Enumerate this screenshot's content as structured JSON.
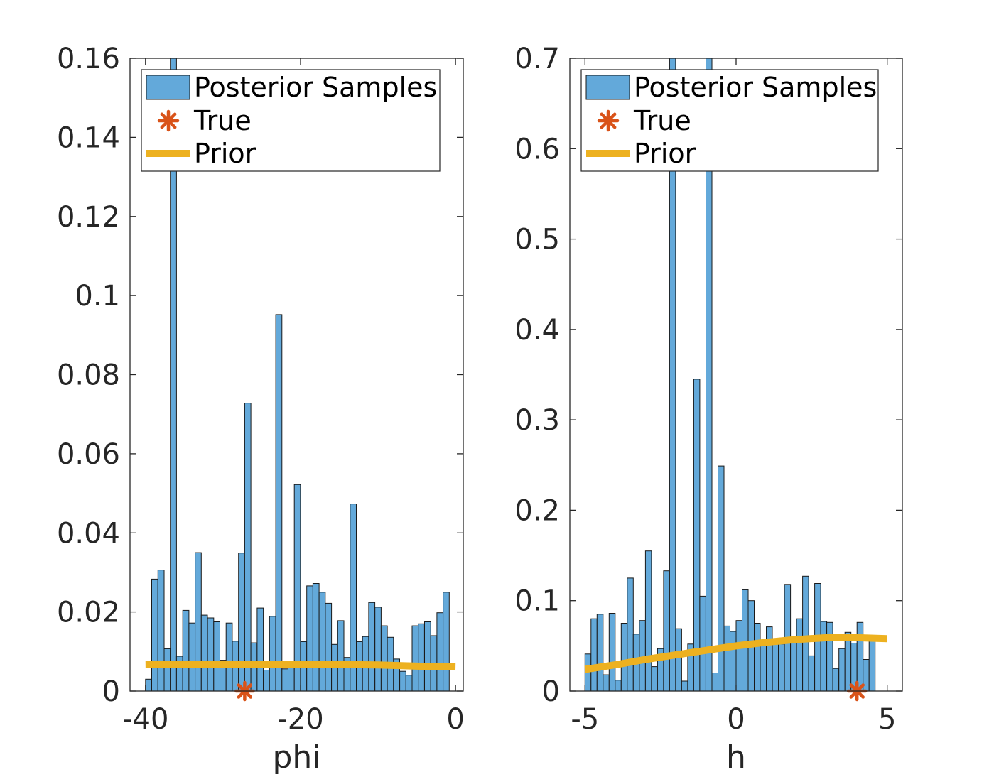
{
  "figure": {
    "colors": {
      "bars": "#63a9da",
      "bar_edge": "#1a1a1a",
      "true_marker": "#d95319",
      "prior_line": "#edb120",
      "axis": "#262626"
    }
  },
  "chart_data": [
    {
      "type": "bar",
      "panel": "left",
      "xlabel": "phi",
      "ylabel": "",
      "xlim": [
        -42,
        1
      ],
      "ylim": [
        0,
        0.16
      ],
      "xticks": [
        -40,
        -20,
        0
      ],
      "xtick_labels": [
        "-40",
        "-20",
        "0"
      ],
      "yticks": [
        0,
        0.02,
        0.04,
        0.06,
        0.08,
        0.1,
        0.12,
        0.14,
        0.16
      ],
      "ytick_labels": [
        "0",
        "0.02",
        "0.04",
        "0.06",
        "0.08",
        "0.1",
        "0.12",
        "0.14",
        "0.16"
      ],
      "legend": {
        "placement": "top-right",
        "entries": [
          "Posterior Samples",
          "True",
          "Prior"
        ]
      },
      "histogram": {
        "name": "Posterior Samples",
        "bin_start": -40.0,
        "bin_width": 0.8,
        "values": [
          0.003,
          0.0283,
          0.0306,
          0.0107,
          0.1605,
          0.0088,
          0.0204,
          0.0172,
          0.035,
          0.0192,
          0.0185,
          0.0175,
          0.0078,
          0.0172,
          0.0126,
          0.0349,
          0.0728,
          0.0122,
          0.021,
          0.0053,
          0.0189,
          0.0952,
          0.0056,
          0.006,
          0.0522,
          0.0125,
          0.0266,
          0.0272,
          0.025,
          0.0222,
          0.0118,
          0.0178,
          0.0085,
          0.0473,
          0.0125,
          0.0138,
          0.0224,
          0.0212,
          0.0165,
          0.0136,
          0.0081,
          0.005,
          0.004,
          0.0165,
          0.017,
          0.0175,
          0.014,
          0.0198,
          0.025
        ]
      },
      "true_value": {
        "name": "True",
        "x": -27.2,
        "y": 0
      },
      "prior": {
        "name": "Prior",
        "x": [
          -40,
          -35,
          -30,
          -25,
          -20,
          -15,
          -10,
          -5,
          0
        ],
        "y": [
          0.0067,
          0.0068,
          0.0068,
          0.0068,
          0.0068,
          0.0067,
          0.0066,
          0.0063,
          0.0061
        ]
      }
    },
    {
      "type": "bar",
      "panel": "right",
      "xlabel": "h",
      "ylabel": "",
      "xlim": [
        -5.5,
        5.5
      ],
      "ylim": [
        0,
        0.7
      ],
      "xticks": [
        -5,
        0,
        5
      ],
      "xtick_labels": [
        "-5",
        "0",
        "5"
      ],
      "yticks": [
        0,
        0.1,
        0.2,
        0.3,
        0.4,
        0.5,
        0.6,
        0.7
      ],
      "ytick_labels": [
        "0",
        "0.1",
        "0.2",
        "0.3",
        "0.4",
        "0.5",
        "0.6",
        "0.7"
      ],
      "legend": {
        "placement": "top-right",
        "entries": [
          "Posterior Samples",
          "True",
          "Prior"
        ]
      },
      "histogram": {
        "name": "Posterior Samples",
        "bin_start": -5.0,
        "bin_width": 0.2,
        "values": [
          0.041,
          0.08,
          0.085,
          0.018,
          0.086,
          0.012,
          0.075,
          0.125,
          0.063,
          0.078,
          0.155,
          0.027,
          0.047,
          0.133,
          0.71,
          0.069,
          0.011,
          0.052,
          0.345,
          0.105,
          0.71,
          0.02,
          0.249,
          0.072,
          0.066,
          0.078,
          0.112,
          0.1,
          0.075,
          0.05,
          0.071,
          0.055,
          0.052,
          0.118,
          0.059,
          0.08,
          0.127,
          0.039,
          0.119,
          0.077,
          0.076,
          0.025,
          0.047,
          0.065,
          0.053,
          0.076,
          0.035,
          0.058
        ]
      },
      "true_value": {
        "name": "True",
        "x": 4.0,
        "y": 0
      },
      "prior": {
        "name": "Prior",
        "x": [
          -5,
          -4,
          -3,
          -2,
          -1,
          0,
          1,
          2,
          3,
          4,
          5
        ],
        "y": [
          0.024,
          0.029,
          0.035,
          0.04,
          0.045,
          0.05,
          0.054,
          0.057,
          0.059,
          0.059,
          0.058
        ]
      }
    }
  ]
}
